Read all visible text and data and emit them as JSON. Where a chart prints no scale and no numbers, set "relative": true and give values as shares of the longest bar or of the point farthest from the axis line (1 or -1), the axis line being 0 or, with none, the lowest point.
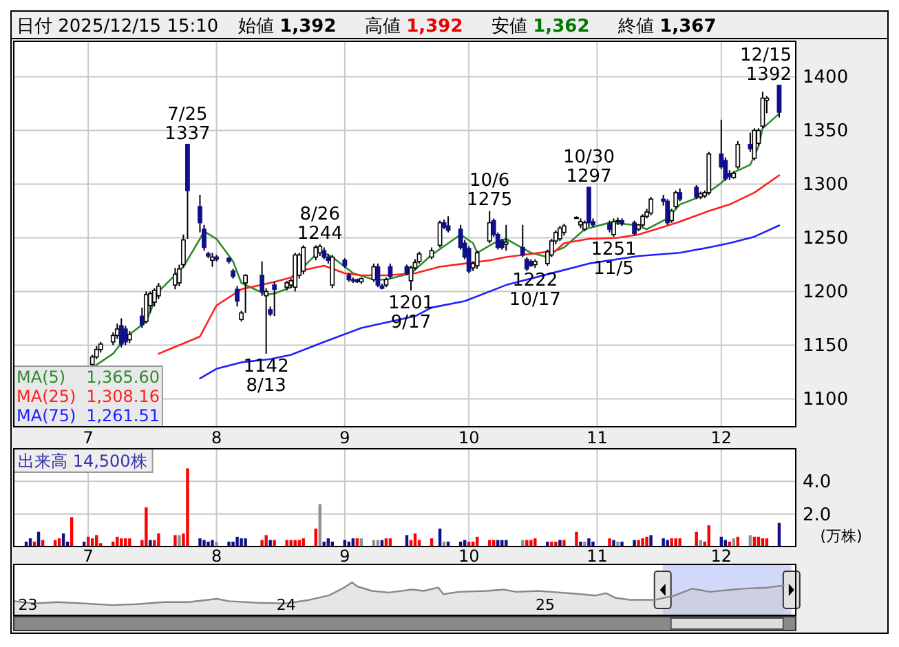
{
  "chart_data": [
    {
      "type": "candlestick",
      "title": "日付 2025/12/15 15:10",
      "annotations": [
        "始値 **1,392**",
        "高値 **1,392**",
        "安値 **1,362**",
        "終値 **1,367**",
        {
          "text": "7/25",
          "x": "2025-07-25",
          "y": 1337
        },
        {
          "text": "1337",
          "x": "2025-07-25",
          "y": 1337
        },
        {
          "text": "1142",
          "x": "2025-08-13",
          "y": 1142
        },
        {
          "text": "8/13",
          "x": "2025-08-13",
          "y": 1142
        },
        {
          "text": "8/26",
          "x": "2025-08-26",
          "y": 1244
        },
        {
          "text": "1244",
          "x": "2025-08-26",
          "y": 1244
        },
        {
          "text": "1201",
          "x": "2025-09-17",
          "y": 1201
        },
        {
          "text": "9/17",
          "x": "2025-09-17",
          "y": 1201
        },
        {
          "text": "10/6",
          "x": "2025-10-06",
          "y": 1275
        },
        {
          "text": "1275",
          "x": "2025-10-06",
          "y": 1275
        },
        {
          "text": "1222",
          "x": "2025-10-17",
          "y": 1222
        },
        {
          "text": "10/17",
          "x": "2025-10-17",
          "y": 1222
        },
        {
          "text": "10/30",
          "x": "2025-10-30",
          "y": 1297
        },
        {
          "text": "1297",
          "x": "2025-10-30",
          "y": 1297
        },
        {
          "text": "1251",
          "x": "2025-11-05",
          "y": 1251
        },
        {
          "text": "11/5",
          "x": "2025-11-05",
          "y": 1251
        },
        {
          "text": "12/15",
          "x": "2025-12-15",
          "y": 1392
        },
        {
          "text": "1392",
          "x": "2025-12-15",
          "y": 1392
        }
      ],
      "x": [
        "2025-07-02",
        "2025-07-03",
        "2025-07-04",
        "2025-07-07",
        "2025-07-08",
        "2025-07-09",
        "2025-07-10",
        "2025-07-11",
        "2025-07-14",
        "2025-07-15",
        "2025-07-16",
        "2025-07-17",
        "2025-07-18",
        "2025-07-22",
        "2025-07-23",
        "2025-07-24",
        "2025-07-25",
        "2025-07-28",
        "2025-07-29",
        "2025-07-30",
        "2025-07-31",
        "2025-08-01",
        "2025-08-04",
        "2025-08-05",
        "2025-08-06",
        "2025-08-07",
        "2025-08-08",
        "2025-08-12",
        "2025-08-13",
        "2025-08-14",
        "2025-08-15",
        "2025-08-18",
        "2025-08-19",
        "2025-08-20",
        "2025-08-21",
        "2025-08-22",
        "2025-08-25",
        "2025-08-26",
        "2025-08-27",
        "2025-08-28",
        "2025-08-29",
        "2025-09-01",
        "2025-09-02",
        "2025-09-03",
        "2025-09-04",
        "2025-09-05",
        "2025-09-08",
        "2025-09-09",
        "2025-09-10",
        "2025-09-11",
        "2025-09-12",
        "2025-09-16",
        "2025-09-17",
        "2025-09-18",
        "2025-09-19",
        "2025-09-22",
        "2025-09-24",
        "2025-09-25",
        "2025-09-26",
        "2025-09-29",
        "2025-09-30",
        "2025-10-01",
        "2025-10-02",
        "2025-10-03",
        "2025-10-06",
        "2025-10-07",
        "2025-10-08",
        "2025-10-09",
        "2025-10-10",
        "2025-10-14",
        "2025-10-15",
        "2025-10-16",
        "2025-10-17",
        "2025-10-20",
        "2025-10-21",
        "2025-10-22",
        "2025-10-23",
        "2025-10-24",
        "2025-10-27",
        "2025-10-28",
        "2025-10-29",
        "2025-10-30",
        "2025-10-31",
        "2025-11-04",
        "2025-11-05",
        "2025-11-06",
        "2025-11-07",
        "2025-11-10",
        "2025-11-11",
        "2025-11-12",
        "2025-11-13",
        "2025-11-14",
        "2025-11-17",
        "2025-11-18",
        "2025-11-19",
        "2025-11-20",
        "2025-11-21",
        "2025-11-25",
        "2025-11-26",
        "2025-11-27",
        "2025-11-28",
        "2025-12-01",
        "2025-12-02",
        "2025-12-03",
        "2025-12-04",
        "2025-12-05",
        "2025-12-08",
        "2025-12-09",
        "2025-12-10",
        "2025-12-11",
        "2025-12-12",
        "2025-12-15"
      ],
      "ohlc": [
        [
          1132,
          1141,
          1130,
          1139
        ],
        [
          1139,
          1149,
          1137,
          1146
        ],
        [
          1146,
          1153,
          1143,
          1151
        ],
        [
          1153,
          1162,
          1150,
          1159
        ],
        [
          1159,
          1170,
          1156,
          1165
        ],
        [
          1168,
          1175,
          1148,
          1151
        ],
        [
          1165,
          1168,
          1150,
          1153
        ],
        [
          1155,
          1163,
          1152,
          1160
        ],
        [
          1177,
          1185,
          1166,
          1169
        ],
        [
          1172,
          1200,
          1170,
          1197
        ],
        [
          1187,
          1200,
          1180,
          1198
        ],
        [
          1190,
          1203,
          1186,
          1201
        ],
        [
          1196,
          1208,
          1193,
          1205
        ],
        [
          1206,
          1222,
          1202,
          1216
        ],
        [
          1208,
          1225,
          1205,
          1221
        ],
        [
          1225,
          1253,
          1222,
          1248
        ],
        [
          1337,
          1337,
          1249,
          1294
        ],
        [
          1279,
          1290,
          1255,
          1264
        ],
        [
          1258,
          1262,
          1238,
          1241
        ],
        [
          1235,
          1237,
          1231,
          1233
        ],
        [
          1229,
          1236,
          1223,
          1232
        ],
        [
          1232,
          1234,
          1228,
          1230
        ],
        [
          1231,
          1232,
          1226,
          1228
        ],
        [
          1219,
          1221,
          1212,
          1214
        ],
        [
          1202,
          1205,
          1186,
          1191
        ],
        [
          1174,
          1182,
          1172,
          1180
        ],
        [
          1208,
          1216,
          1180,
          1215
        ],
        [
          1215,
          1228,
          1196,
          1200
        ],
        [
          1196,
          1203,
          1142,
          1200
        ],
        [
          1183,
          1186,
          1177,
          1179
        ],
        [
          1206,
          1209,
          1177,
          1202
        ],
        [
          1204,
          1210,
          1201,
          1208
        ],
        [
          1206,
          1212,
          1203,
          1210
        ],
        [
          1204,
          1236,
          1200,
          1234
        ],
        [
          1215,
          1236,
          1212,
          1234
        ],
        [
          1219,
          1243,
          1216,
          1241
        ],
        [
          1232,
          1243,
          1229,
          1241
        ],
        [
          1236,
          1244,
          1233,
          1242
        ],
        [
          1238,
          1241,
          1230,
          1232
        ],
        [
          1232,
          1235,
          1226,
          1229
        ],
        [
          1206,
          1234,
          1203,
          1232
        ],
        [
          1229,
          1231,
          1222,
          1224
        ],
        [
          1215,
          1217,
          1209,
          1211
        ],
        [
          1211,
          1213,
          1208,
          1210
        ],
        [
          1211,
          1212,
          1208,
          1209
        ],
        [
          1209,
          1213,
          1207,
          1212
        ],
        [
          1211,
          1226,
          1209,
          1223
        ],
        [
          1223,
          1226,
          1204,
          1206
        ],
        [
          1205,
          1207,
          1202,
          1203
        ],
        [
          1206,
          1213,
          1204,
          1211
        ],
        [
          1223,
          1226,
          1212,
          1214
        ],
        [
          1223,
          1225,
          1215,
          1217
        ],
        [
          1210,
          1224,
          1201,
          1222
        ],
        [
          1222,
          1230,
          1220,
          1227
        ],
        [
          1228,
          1237,
          1226,
          1235
        ],
        [
          1232,
          1241,
          1230,
          1238
        ],
        [
          1243,
          1266,
          1241,
          1264
        ],
        [
          1264,
          1267,
          1258,
          1260
        ],
        [
          1261,
          1270,
          1255,
          1257
        ],
        [
          1258,
          1262,
          1239,
          1241
        ],
        [
          1245,
          1248,
          1230,
          1232
        ],
        [
          1240,
          1242,
          1217,
          1219
        ],
        [
          1222,
          1228,
          1219,
          1226
        ],
        [
          1224,
          1238,
          1221,
          1236
        ],
        [
          1247,
          1275,
          1245,
          1264
        ],
        [
          1266,
          1268,
          1251,
          1253
        ],
        [
          1253,
          1255,
          1239,
          1241
        ],
        [
          1247,
          1249,
          1239,
          1241
        ],
        [
          1244,
          1262,
          1238,
          1246
        ],
        [
          1241,
          1262,
          1232,
          1234
        ],
        [
          1230,
          1232,
          1219,
          1221
        ],
        [
          1228,
          1230,
          1223,
          1224
        ],
        [
          1225,
          1230,
          1222,
          1228
        ],
        [
          1226,
          1239,
          1224,
          1237
        ],
        [
          1234,
          1249,
          1232,
          1247
        ],
        [
          1247,
          1257,
          1244,
          1255
        ],
        [
          1249,
          1261,
          1247,
          1259
        ],
        [
          1255,
          1263,
          1252,
          1261
        ],
        [
          1269,
          1270,
          1268,
          1269
        ],
        [
          1262,
          1268,
          1259,
          1265
        ],
        [
          1258,
          1266,
          1256,
          1264
        ],
        [
          1297,
          1297,
          1260,
          1264
        ],
        [
          1265,
          1268,
          1260,
          1262
        ],
        [
          1263,
          1266,
          1255,
          1258
        ],
        [
          1253,
          1268,
          1251,
          1265
        ],
        [
          1265,
          1269,
          1262,
          1266
        ],
        [
          1266,
          1268,
          1261,
          1263
        ],
        [
          1264,
          1266,
          1252,
          1254
        ],
        [
          1258,
          1263,
          1256,
          1262
        ],
        [
          1262,
          1272,
          1260,
          1270
        ],
        [
          1270,
          1277,
          1268,
          1274
        ],
        [
          1273,
          1288,
          1271,
          1286
        ],
        [
          1286,
          1290,
          1280,
          1284
        ],
        [
          1284,
          1286,
          1262,
          1264
        ],
        [
          1266,
          1277,
          1264,
          1275
        ],
        [
          1279,
          1294,
          1277,
          1292
        ],
        [
          1292,
          1296,
          1284,
          1286
        ],
        [
          1297,
          1299,
          1286,
          1288
        ],
        [
          1288,
          1293,
          1286,
          1291
        ],
        [
          1289,
          1294,
          1287,
          1292
        ],
        [
          1292,
          1330,
          1290,
          1328
        ],
        [
          1328,
          1360,
          1314,
          1316
        ],
        [
          1322,
          1325,
          1303,
          1305
        ],
        [
          1310,
          1313,
          1304,
          1307
        ],
        [
          1306,
          1312,
          1305,
          1310
        ],
        [
          1316,
          1340,
          1314,
          1337
        ],
        [
          1337,
          1348,
          1330,
          1333
        ],
        [
          1324,
          1352,
          1322,
          1350
        ],
        [
          1338,
          1352,
          1336,
          1350
        ],
        [
          1354,
          1386,
          1352,
          1380
        ],
        [
          1378,
          1382,
          1366,
          1380
        ],
        [
          1392,
          1392,
          1362,
          1367
        ]
      ],
      "series": [
        {
          "name": "MA(5) 1,365.60",
          "type": "line",
          "color": "#2e8b2e",
          "x": [
            "2025-07-02",
            "2025-07-07",
            "2025-07-10",
            "2025-07-15",
            "2025-07-18",
            "2025-07-24",
            "2025-07-28",
            "2025-07-29",
            "2025-08-01",
            "2025-08-05",
            "2025-08-07",
            "2025-08-13",
            "2025-08-15",
            "2025-08-19",
            "2025-08-21",
            "2025-08-26",
            "2025-08-29",
            "2025-09-03",
            "2025-09-08",
            "2025-09-11",
            "2025-09-17",
            "2025-09-22",
            "2025-09-29",
            "2025-10-02",
            "2025-10-03",
            "2025-10-07",
            "2025-10-10",
            "2025-10-16",
            "2025-10-20",
            "2025-10-22",
            "2025-10-24",
            "2025-10-29",
            "2025-11-04",
            "2025-11-10",
            "2025-11-13",
            "2025-11-18",
            "2025-11-21",
            "2025-11-27",
            "2025-12-01",
            "2025-12-03",
            "2025-12-08",
            "2025-12-10",
            "2025-12-11",
            "2025-12-15"
          ],
          "values": [
            1129,
            1142,
            1157,
            1172,
            1200,
            1223,
            1249,
            1256,
            1249,
            1228,
            1208,
            1197,
            1198,
            1204,
            1219,
            1238,
            1232,
            1217,
            1211,
            1211,
            1217,
            1234,
            1253,
            1245,
            1236,
            1245,
            1249,
            1236,
            1232,
            1238,
            1241,
            1258,
            1264,
            1262,
            1258,
            1268,
            1281,
            1290,
            1301,
            1309,
            1318,
            1335,
            1352,
            1365.6
          ]
        },
        {
          "name": "MA(25) 1,308.16",
          "type": "line",
          "color": "#ff2020",
          "x": [
            "2025-07-18",
            "2025-07-28",
            "2025-08-01",
            "2025-08-07",
            "2025-08-14",
            "2025-08-19",
            "2025-08-21",
            "2025-08-27",
            "2025-09-01",
            "2025-09-05",
            "2025-09-11",
            "2025-09-18",
            "2025-09-24",
            "2025-09-30",
            "2025-10-06",
            "2025-10-10",
            "2025-10-16",
            "2025-10-22",
            "2025-10-24",
            "2025-10-30",
            "2025-11-06",
            "2025-11-11",
            "2025-11-17",
            "2025-11-21",
            "2025-11-28",
            "2025-12-03",
            "2025-12-09",
            "2025-12-15"
          ],
          "values": [
            1142,
            1158,
            1187,
            1202,
            1208,
            1213,
            1219,
            1224,
            1217,
            1215,
            1215,
            1217,
            1223,
            1226,
            1229,
            1232,
            1235,
            1238,
            1245,
            1249,
            1250,
            1253,
            1260,
            1265,
            1275,
            1281,
            1292,
            1308.16
          ]
        },
        {
          "name": "MA(75) 1,261.51",
          "type": "line",
          "color": "#2020ff",
          "x": [
            "2025-07-28",
            "2025-08-01",
            "2025-08-07",
            "2025-08-14",
            "2025-08-19",
            "2025-08-27",
            "2025-09-05",
            "2025-09-18",
            "2025-09-22",
            "2025-09-30",
            "2025-10-10",
            "2025-10-22",
            "2025-10-30",
            "2025-11-11",
            "2025-11-21",
            "2025-11-28",
            "2025-12-03",
            "2025-12-09",
            "2025-12-15"
          ],
          "values": [
            1119,
            1128,
            1134,
            1137,
            1141,
            1153,
            1166,
            1177,
            1185,
            1191,
            1206,
            1218,
            1226,
            1233,
            1236,
            1241,
            1245,
            1251,
            1261.51
          ]
        }
      ],
      "xlim": [
        "2025-06-13",
        "2025-12-19"
      ],
      "xticks": [
        {
          "value": "2025-07-01",
          "label": "7"
        },
        {
          "value": "2025-08-01",
          "label": "8"
        },
        {
          "value": "2025-09-01",
          "label": "9"
        },
        {
          "value": "2025-10-01",
          "label": "10"
        },
        {
          "value": "2025-11-01",
          "label": "11"
        },
        {
          "value": "2025-12-01",
          "label": "12"
        }
      ],
      "ylim": [
        1074,
        1433
      ],
      "yticks": [
        1100,
        1150,
        1200,
        1250,
        1300,
        1350,
        1400
      ],
      "grid": true,
      "legend": "bottom left"
    },
    {
      "type": "bar",
      "title": "出来高 14,500株",
      "ylabel": "(万株)",
      "x": [
        "2025-06-16",
        "2025-06-17",
        "2025-06-18",
        "2025-06-19",
        "2025-06-20",
        "2025-06-23",
        "2025-06-24",
        "2025-06-25",
        "2025-06-26",
        "2025-06-27",
        "2025-06-30",
        "2025-07-01",
        "2025-07-02",
        "2025-07-03",
        "2025-07-04",
        "2025-07-07",
        "2025-07-08",
        "2025-07-09",
        "2025-07-10",
        "2025-07-11",
        "2025-07-14",
        "2025-07-15",
        "2025-07-16",
        "2025-07-17",
        "2025-07-18",
        "2025-07-22",
        "2025-07-23",
        "2025-07-24",
        "2025-07-25",
        "2025-07-28",
        "2025-07-29",
        "2025-07-30",
        "2025-07-31",
        "2025-08-01",
        "2025-08-04",
        "2025-08-05",
        "2025-08-06",
        "2025-08-07",
        "2025-08-08",
        "2025-08-12",
        "2025-08-13",
        "2025-08-14",
        "2025-08-15",
        "2025-08-18",
        "2025-08-19",
        "2025-08-20",
        "2025-08-21",
        "2025-08-22",
        "2025-08-25",
        "2025-08-26",
        "2025-08-27",
        "2025-08-28",
        "2025-08-29",
        "2025-09-01",
        "2025-09-02",
        "2025-09-03",
        "2025-09-04",
        "2025-09-05",
        "2025-09-08",
        "2025-09-09",
        "2025-09-10",
        "2025-09-11",
        "2025-09-12",
        "2025-09-16",
        "2025-09-17",
        "2025-09-18",
        "2025-09-19",
        "2025-09-22",
        "2025-09-24",
        "2025-09-25",
        "2025-09-26",
        "2025-09-29",
        "2025-09-30",
        "2025-10-01",
        "2025-10-02",
        "2025-10-03",
        "2025-10-06",
        "2025-10-07",
        "2025-10-08",
        "2025-10-09",
        "2025-10-10",
        "2025-10-14",
        "2025-10-15",
        "2025-10-16",
        "2025-10-17",
        "2025-10-20",
        "2025-10-21",
        "2025-10-22",
        "2025-10-23",
        "2025-10-24",
        "2025-10-27",
        "2025-10-28",
        "2025-10-29",
        "2025-10-30",
        "2025-10-31",
        "2025-11-04",
        "2025-11-05",
        "2025-11-06",
        "2025-11-07",
        "2025-11-10",
        "2025-11-11",
        "2025-11-12",
        "2025-11-13",
        "2025-11-14",
        "2025-11-17",
        "2025-11-18",
        "2025-11-19",
        "2025-11-20",
        "2025-11-21",
        "2025-11-25",
        "2025-11-26",
        "2025-11-27",
        "2025-11-28",
        "2025-12-01",
        "2025-12-02",
        "2025-12-03",
        "2025-12-04",
        "2025-12-05",
        "2025-12-08",
        "2025-12-09",
        "2025-12-10",
        "2025-12-11",
        "2025-12-12",
        "2025-12-15"
      ],
      "values": [
        0.3,
        0.5,
        0.3,
        0.9,
        0.4,
        0.4,
        0.5,
        0.8,
        0.3,
        1.8,
        0.3,
        0.6,
        0.5,
        0.7,
        0.2,
        0.3,
        0.6,
        0.5,
        0.5,
        0.5,
        0.4,
        2.4,
        0.4,
        0.4,
        0.8,
        0.7,
        0.7,
        0.8,
        4.8,
        0.5,
        0.4,
        0.3,
        0.4,
        0.3,
        0.3,
        0.3,
        0.6,
        0.5,
        0.5,
        0.4,
        0.7,
        0.4,
        0.4,
        0.4,
        0.4,
        0.4,
        0.4,
        0.5,
        1.1,
        2.6,
        0.3,
        0.5,
        0.3,
        0.4,
        0.3,
        0.5,
        0.5,
        0.5,
        0.4,
        0.4,
        0.4,
        0.5,
        0.5,
        0.7,
        0.4,
        0.8,
        0.4,
        0.5,
        1.1,
        0.3,
        0.3,
        0.3,
        0.4,
        0.3,
        0.3,
        0.6,
        0.4,
        0.4,
        0.4,
        0.4,
        0.4,
        0.4,
        0.4,
        0.4,
        0.5,
        0.3,
        0.3,
        0.3,
        0.4,
        0.4,
        0.9,
        0.3,
        0.3,
        0.5,
        0.3,
        0.5,
        0.4,
        0.3,
        0.3,
        0.4,
        0.4,
        0.5,
        0.6,
        0.7,
        0.5,
        0.4,
        0.5,
        0.5,
        0.5,
        0.9,
        0.4,
        0.3,
        1.3,
        0.6,
        0.4,
        0.3,
        0.5,
        0.6,
        0.7,
        0.6,
        0.6,
        0.5,
        0.5,
        1.45
      ],
      "colors": [
        "#10108c",
        "#10108c",
        "#ff0000",
        "#10108c",
        "#ff0000",
        "#ff0000",
        "#ff0000",
        "#10108c",
        "#10108c",
        "#ff0000",
        "#10108c",
        "#ff0000",
        "#ff0000",
        "#ff0000",
        "#ff0000",
        "#ff0000",
        "#ff0000",
        "#ff0000",
        "#ff0000",
        "#ff0000",
        "#ff0000",
        "#ff0000",
        "#10108c",
        "#ff0000",
        "#ff0000",
        "#ff0000",
        "#909090",
        "#ff0000",
        "#ff0000",
        "#10108c",
        "#10108c",
        "#10108c",
        "#10108c",
        "#909090",
        "#10108c",
        "#10108c",
        "#10108c",
        "#10108c",
        "#10108c",
        "#ff0000",
        "#ff0000",
        "#10108c",
        "#ff0000",
        "#ff0000",
        "#ff0000",
        "#ff0000",
        "#ff0000",
        "#ff0000",
        "#ff0000",
        "#909090",
        "#10108c",
        "#10108c",
        "#10108c",
        "#10108c",
        "#10108c",
        "#10108c",
        "#ff0000",
        "#909090",
        "#909090",
        "#909090",
        "#10108c",
        "#ff0000",
        "#ff0000",
        "#10108c",
        "#ff0000",
        "#ff0000",
        "#ff0000",
        "#ff0000",
        "#10108c",
        "#909090",
        "#10108c",
        "#10108c",
        "#10108c",
        "#ff0000",
        "#ff0000",
        "#ff0000",
        "#ff0000",
        "#ff0000",
        "#10108c",
        "#10108c",
        "#10108c",
        "#909090",
        "#ff0000",
        "#ff0000",
        "#ff0000",
        "#10108c",
        "#ff0000",
        "#ff0000",
        "#10108c",
        "#ff0000",
        "#ff0000",
        "#10108c",
        "#909090",
        "#10108c",
        "#10108c",
        "#ff0000",
        "#10108c",
        "#909090",
        "#10108c",
        "#10108c",
        "#ff0000",
        "#ff0000",
        "#ff0000",
        "#10108c",
        "#10108c",
        "#10108c",
        "#ff0000",
        "#ff0000",
        "#ff0000",
        "#ff0000",
        "#909090",
        "#ff0000",
        "#ff0000",
        "#10108c",
        "#10108c",
        "#ff0000",
        "#909090",
        "#ff0000",
        "#909090",
        "#ff0000",
        "#ff0000",
        "#ff0000",
        "#ff0000",
        "#10108c"
      ],
      "xlim": [
        "2025-06-13",
        "2025-12-19"
      ],
      "xticks": [
        {
          "value": "2025-07-01",
          "label": "7"
        },
        {
          "value": "2025-08-01",
          "label": "8"
        },
        {
          "value": "2025-09-01",
          "label": "9"
        },
        {
          "value": "2025-10-01",
          "label": "10"
        },
        {
          "value": "2025-11-01",
          "label": "11"
        },
        {
          "value": "2025-12-01",
          "label": "12"
        }
      ],
      "ylim": [
        0,
        6
      ],
      "yticks": [
        {
          "value": 2,
          "label": "2.0"
        },
        {
          "value": 4,
          "label": "4.0"
        }
      ],
      "grid": true
    },
    {
      "type": "area",
      "relative": true,
      "color": "#888888",
      "x": [
        "2022-12-13",
        "2023-01-10",
        "2023-02-12",
        "2023-03-22",
        "2023-05-01",
        "2023-06-04",
        "2023-07-13",
        "2023-08-16",
        "2023-09-25",
        "2023-10-12",
        "2023-11-22",
        "2024-01-01",
        "2024-02-03",
        "2024-03-01",
        "2024-03-22",
        "2024-04-03",
        "2024-04-10",
        "2024-05-01",
        "2024-05-25",
        "2024-06-27",
        "2024-07-13",
        "2024-08-03",
        "2024-08-10",
        "2024-09-01",
        "2024-10-10",
        "2024-11-04",
        "2024-11-21",
        "2024-12-22",
        "2025-01-09",
        "2025-02-09",
        "2025-03-13",
        "2025-03-28",
        "2025-04-10",
        "2025-05-01",
        "2025-06-06",
        "2025-07-03",
        "2025-07-28",
        "2025-08-21",
        "2025-09-24",
        "2025-10-09",
        "2025-11-11",
        "2025-12-05"
      ],
      "values": [
        0.43,
        0.36,
        0.4,
        0.36,
        0.31,
        0.34,
        0.4,
        0.4,
        0.5,
        0.43,
        0.38,
        0.36,
        0.47,
        0.6,
        0.83,
        1,
        0.88,
        0.74,
        0.69,
        0.78,
        0.74,
        0.84,
        0.64,
        0.71,
        0.74,
        0.78,
        0.71,
        0.74,
        0.71,
        0.66,
        0.6,
        0.67,
        0.53,
        0.47,
        0.47,
        0.6,
        0.81,
        0.71,
        0.78,
        0.81,
        0.84,
        0.91
      ],
      "xlim": [
        "2022-12-12",
        "2025-12-21"
      ],
      "xticks": [
        {
          "value": "2023-01-01",
          "label": "23"
        },
        {
          "value": "2024-01-01",
          "label": "24"
        },
        {
          "value": "2025-01-01",
          "label": "25"
        }
      ],
      "bands": [
        {
          "axis": "x",
          "from": "2025-06-16",
          "to": "2025-12-15",
          "color": "#b4bef5"
        }
      ]
    }
  ]
}
